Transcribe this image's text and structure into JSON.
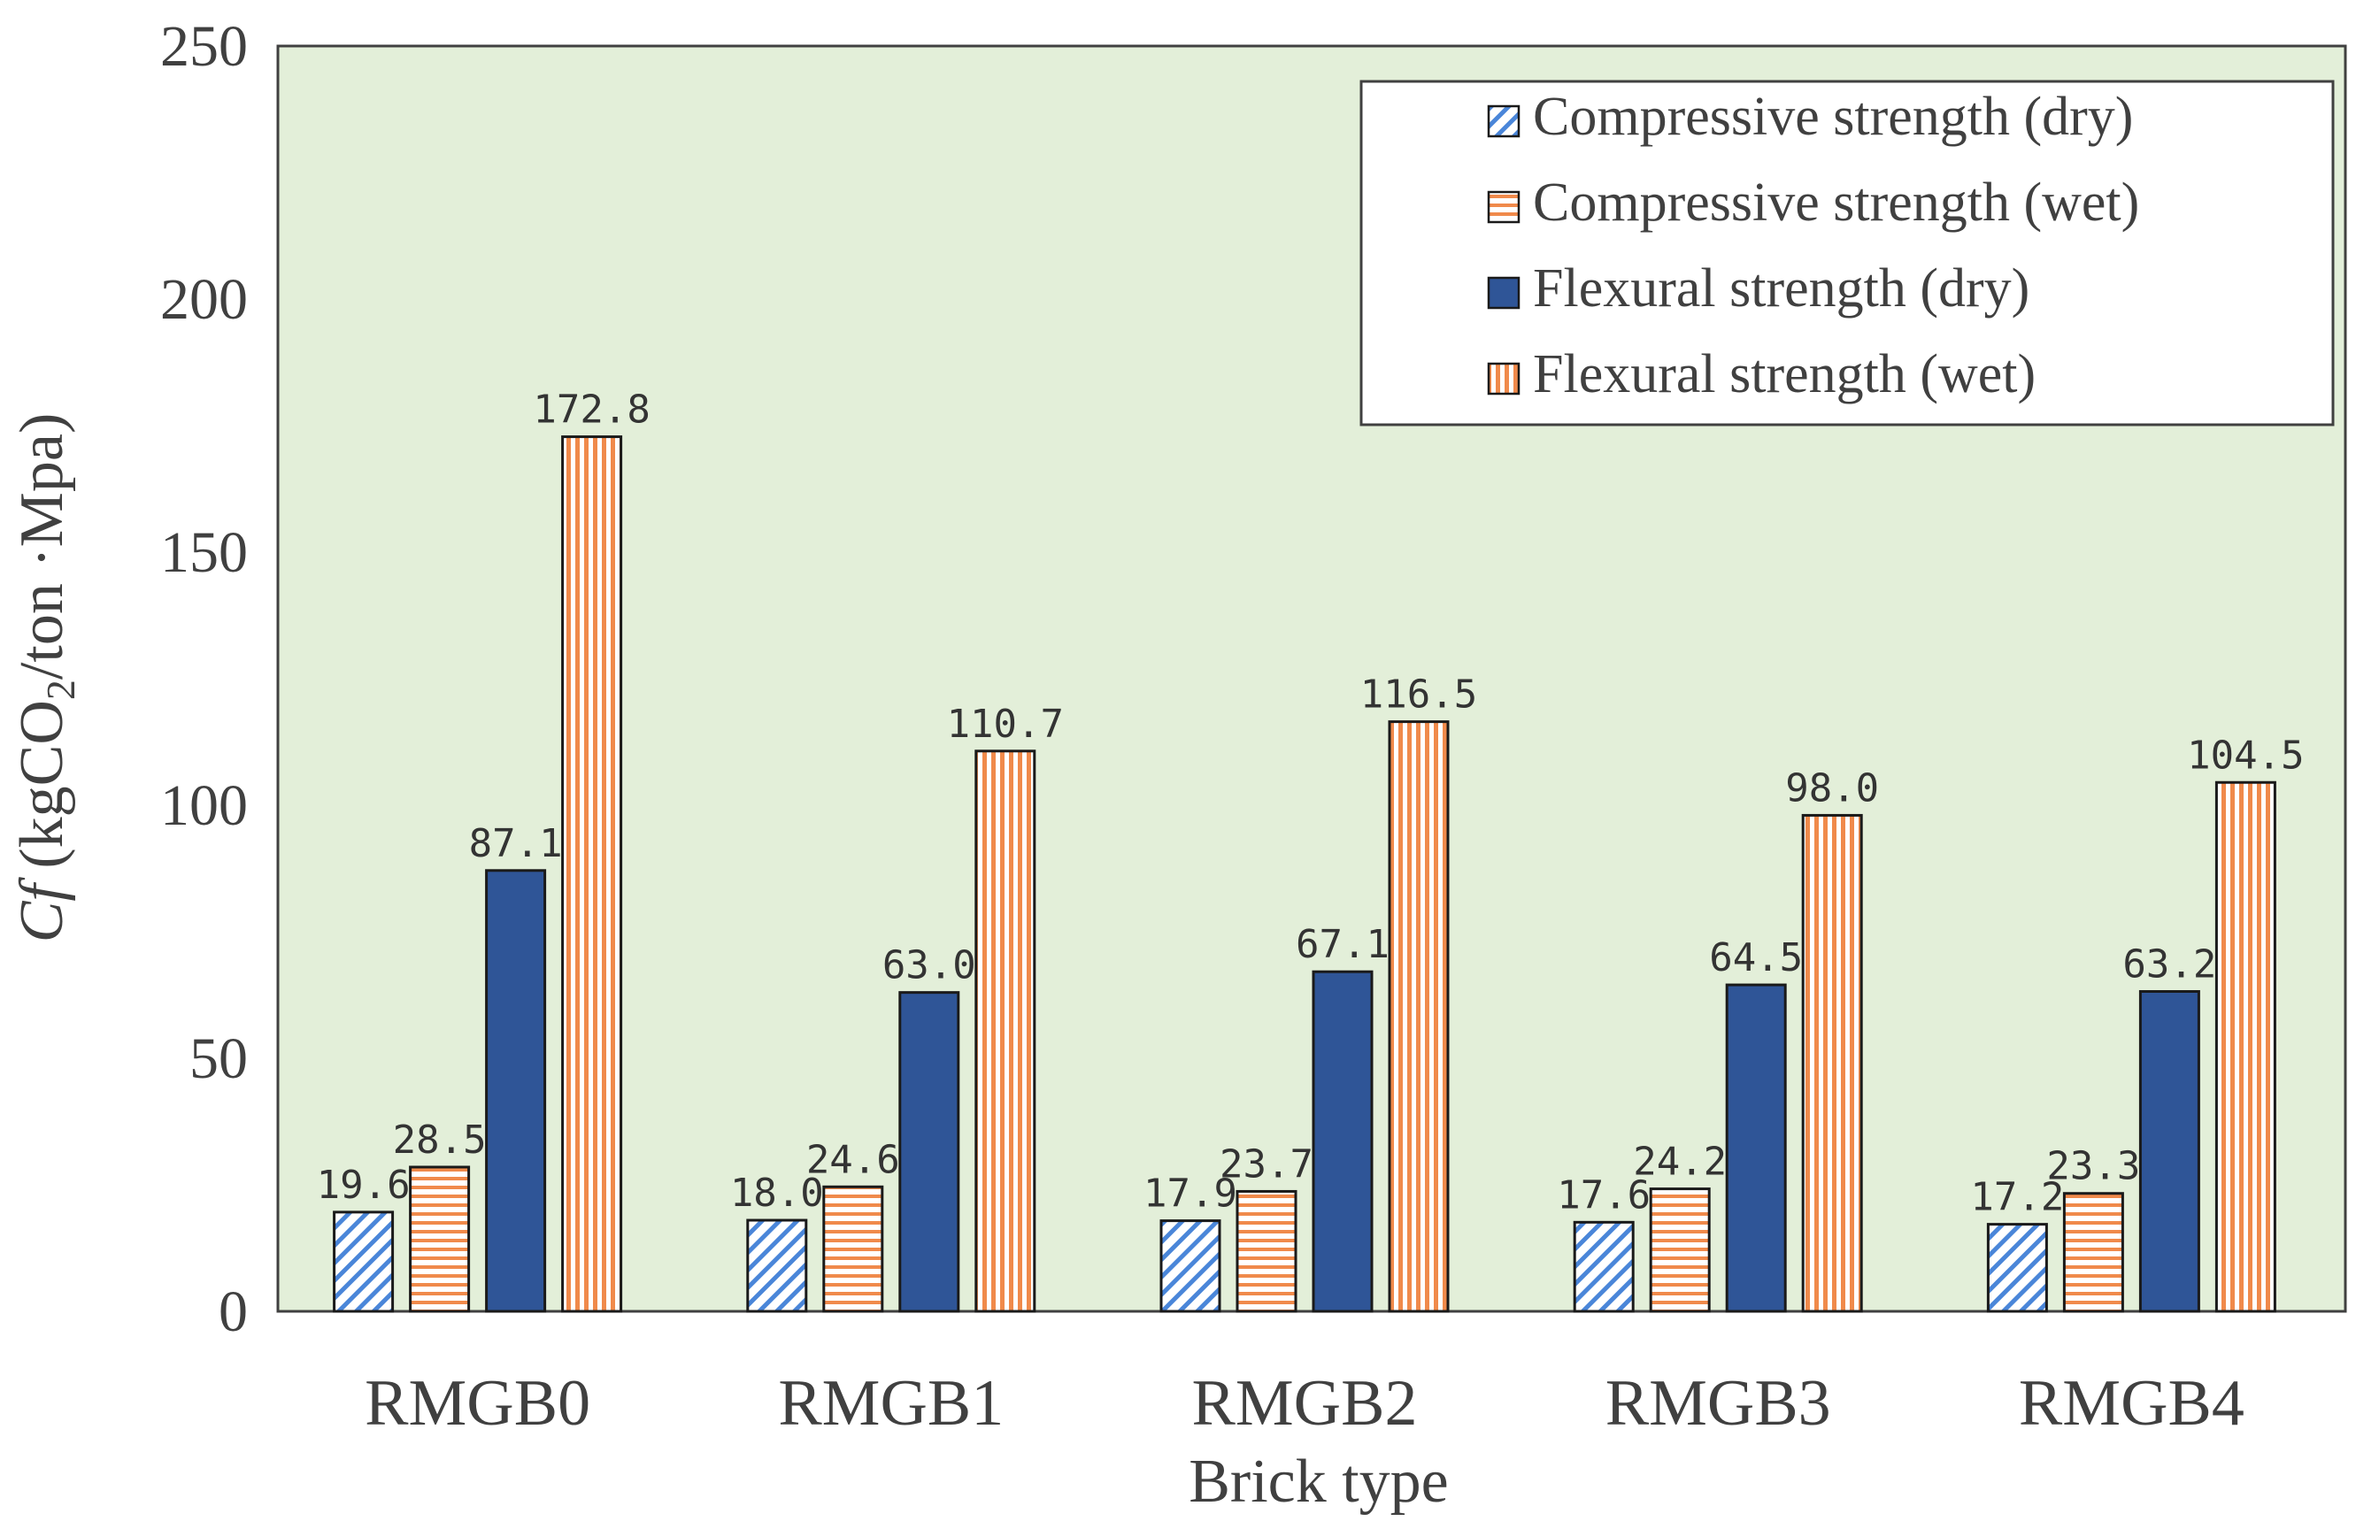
{
  "chart_data": {
    "type": "bar",
    "title": "",
    "xlabel": "Brick type",
    "ylabel": {
      "symbol": "Cf",
      "unit_prefix": " (kgCO",
      "unit_subscript": "2",
      "unit_suffix": "/ton ·Mpa)"
    },
    "ylim": [
      0,
      250
    ],
    "yticks": [
      "0",
      "50",
      "100",
      "150",
      "200",
      "250"
    ],
    "categories": [
      "RMGB0",
      "RMGB1",
      "RMGB2",
      "RMGB3",
      "RMGB4"
    ],
    "series": [
      {
        "name": "Compressive strength (dry)",
        "style": "diagonal-hatch",
        "color": "#4a86d9",
        "values": [
          19.6,
          18.0,
          17.9,
          17.6,
          17.2
        ],
        "labels": [
          "19.6",
          "18.0",
          "17.9",
          "17.6",
          "17.2"
        ]
      },
      {
        "name": "Compressive strength (wet)",
        "style": "horizontal-stripes",
        "color": "#f08a4b",
        "values": [
          28.5,
          24.6,
          23.7,
          24.2,
          23.3
        ],
        "labels": [
          "28.5",
          "24.6",
          "23.7",
          "24.2",
          "23.3"
        ]
      },
      {
        "name": "Flexural strength (dry)",
        "style": "solid",
        "color": "#2f5597",
        "values": [
          87.1,
          63.0,
          67.1,
          64.5,
          63.2
        ],
        "labels": [
          "87.1",
          "63.0",
          "67.1",
          "64.5",
          "63.2"
        ]
      },
      {
        "name": "Flexural strength (wet)",
        "style": "vertical-stripes",
        "color": "#f08a4b",
        "values": [
          172.8,
          110.7,
          116.5,
          98.0,
          104.5
        ],
        "labels": [
          "172.8",
          "110.7",
          "116.5",
          "98.0",
          "104.5"
        ]
      }
    ],
    "legend_position": "top-right",
    "plot_background": "#e3efd9",
    "grid": false
  }
}
